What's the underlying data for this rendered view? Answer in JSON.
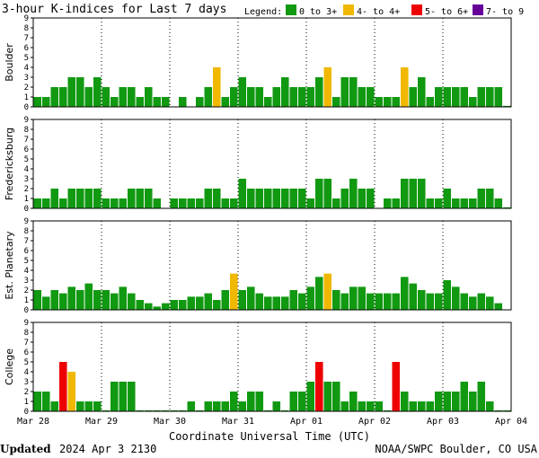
{
  "header": {
    "title": "3-hour K-indices for Last 7 days",
    "legend_label": "Legend:"
  },
  "legend": [
    {
      "label": "0 to 3+",
      "color": "#119911"
    },
    {
      "label": "4- to 4+",
      "color": "#f0b800"
    },
    {
      "label": "5- to 6+",
      "color": "#ee0000"
    },
    {
      "label": "7- to 9",
      "color": "#660099"
    }
  ],
  "footer": {
    "updated_label": "Updated",
    "updated_value": "2024 Apr  3 2130",
    "source": "NOAA/SWPC Boulder, CO USA"
  },
  "chart_data": {
    "type": "bar",
    "x_title": "Coordinate Universal Time (UTC)",
    "x_ticks": [
      "Mar 28",
      "Mar 29",
      "Mar 30",
      "Mar 31",
      "Apr 01",
      "Apr 02",
      "Apr 03",
      "Apr 04"
    ],
    "y_ticks": [
      "0",
      "1",
      "2",
      "3",
      "4",
      "5",
      "6",
      "7",
      "8",
      "9"
    ],
    "ylim": [
      0,
      9
    ],
    "panels": [
      {
        "name": "Boulder",
        "values": [
          1,
          1,
          2,
          2,
          3,
          3,
          2,
          3,
          2,
          1,
          2,
          2,
          1,
          2,
          1,
          1,
          0,
          1,
          0,
          1,
          2,
          4,
          1,
          2,
          3,
          2,
          2,
          1,
          2,
          3,
          2,
          2,
          2,
          3,
          4,
          1,
          3,
          3,
          2,
          2,
          1,
          1,
          1,
          4,
          2,
          3,
          1,
          2,
          2,
          2,
          2,
          1,
          2,
          2,
          2,
          0.1
        ]
      },
      {
        "name": "Fredericksburg",
        "values": [
          1,
          1,
          2,
          1,
          2,
          2,
          2,
          2,
          1,
          1,
          1,
          2,
          2,
          2,
          1,
          0,
          1,
          1,
          1,
          1,
          2,
          2,
          1,
          1,
          3,
          2,
          2,
          2,
          2,
          2,
          2,
          2,
          1,
          3,
          3,
          1,
          2,
          3,
          2,
          2,
          0,
          1,
          1,
          3,
          3,
          3,
          1,
          1,
          2,
          1,
          1,
          1,
          2,
          2,
          1,
          0.1
        ]
      },
      {
        "name": "Est. Planetary",
        "values": [
          2,
          1.33,
          2,
          1.67,
          2.33,
          2,
          2.67,
          2,
          2,
          1.67,
          2.33,
          1.67,
          1,
          0.67,
          0.33,
          0.67,
          1,
          1,
          1.33,
          1.33,
          1.67,
          1,
          2,
          3.67,
          2,
          2.33,
          1.67,
          1.33,
          1.33,
          1.33,
          2,
          1.67,
          2.33,
          3.33,
          3.67,
          2,
          1.67,
          2.33,
          2.33,
          1.67,
          1.67,
          1.67,
          1.67,
          3.33,
          2.67,
          2,
          1.67,
          1.67,
          3,
          2.33,
          1.67,
          1.33,
          1.67,
          1.33,
          0.67,
          0
        ]
      },
      {
        "name": "College",
        "values": [
          2,
          2,
          1,
          5,
          4,
          1,
          1,
          1,
          0.1,
          3,
          3,
          3,
          0.1,
          0.1,
          0.1,
          0.1,
          0.1,
          0.1,
          1,
          0.1,
          1,
          1,
          1,
          2,
          1,
          2,
          2,
          0.1,
          1,
          0.1,
          2,
          2,
          3,
          5,
          3,
          3,
          1,
          2,
          1,
          1,
          1,
          0.1,
          5,
          2,
          1,
          1,
          1,
          2,
          2,
          2,
          3,
          2,
          3,
          1,
          0.1,
          0.1
        ]
      }
    ]
  }
}
